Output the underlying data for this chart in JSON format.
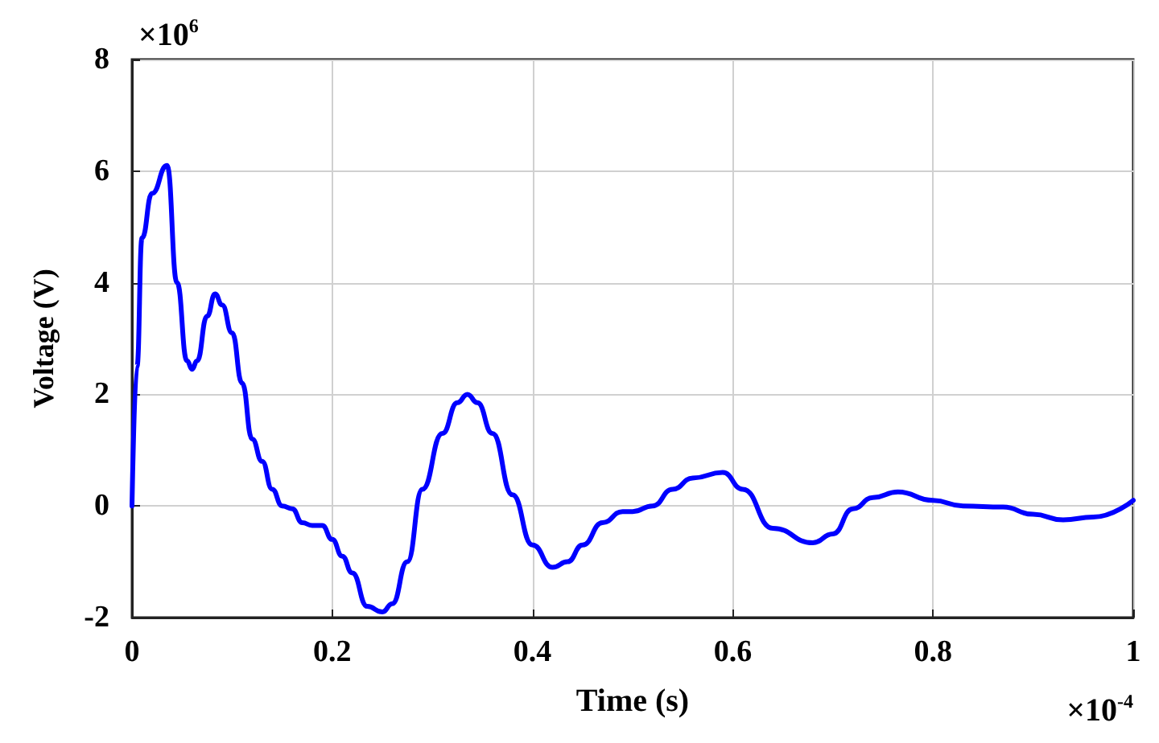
{
  "chart_data": {
    "type": "line",
    "xlabel": "Time (s)",
    "ylabel": "Voltage (V)",
    "xlim": [
      0,
      1
    ],
    "xticks": [
      0,
      0.2,
      0.4,
      0.6,
      0.8,
      1
    ],
    "ylim": [
      -2,
      8
    ],
    "yticks": [
      -2,
      0,
      2,
      4,
      6,
      8
    ],
    "grid": true,
    "marker": "none",
    "line_style": "solid",
    "annotations": [
      "×10$^{6}$",
      "×10$^{-4}$"
    ],
    "series": [
      {
        "color": "#0000ff",
        "x": [
          0,
          0.005,
          0.01,
          0.02,
          0.035,
          0.045,
          0.055,
          0.06,
          0.065,
          0.075,
          0.083,
          0.09,
          0.1,
          0.11,
          0.12,
          0.13,
          0.14,
          0.15,
          0.16,
          0.17,
          0.18,
          0.19,
          0.2,
          0.21,
          0.22,
          0.235,
          0.25,
          0.26,
          0.275,
          0.29,
          0.31,
          0.325,
          0.335,
          0.345,
          0.36,
          0.38,
          0.4,
          0.42,
          0.435,
          0.45,
          0.47,
          0.49,
          0.5,
          0.52,
          0.54,
          0.56,
          0.59,
          0.61,
          0.64,
          0.68,
          0.7,
          0.72,
          0.74,
          0.765,
          0.8,
          0.83,
          0.87,
          0.9,
          0.93,
          0.96,
          1
        ],
        "values": [
          0,
          2.5,
          4.8,
          5.6,
          6.1,
          4,
          2.6,
          2.45,
          2.6,
          3.4,
          3.8,
          3.6,
          3.1,
          2.2,
          1.2,
          0.8,
          0.3,
          0,
          -0.05,
          -0.3,
          -0.35,
          -0.35,
          -0.6,
          -0.9,
          -1.2,
          -1.8,
          -1.9,
          -1.75,
          -1,
          0.3,
          1.3,
          1.85,
          2,
          1.85,
          1.3,
          0.2,
          -0.7,
          -1.1,
          -1,
          -0.7,
          -0.3,
          -0.1,
          -0.1,
          0,
          0.3,
          0.5,
          0.6,
          0.3,
          -0.4,
          -0.66,
          -0.5,
          -0.05,
          0.15,
          0.25,
          0.1,
          0,
          -0.02,
          -0.15,
          -0.25,
          -0.2,
          0.1
        ]
      }
    ]
  }
}
